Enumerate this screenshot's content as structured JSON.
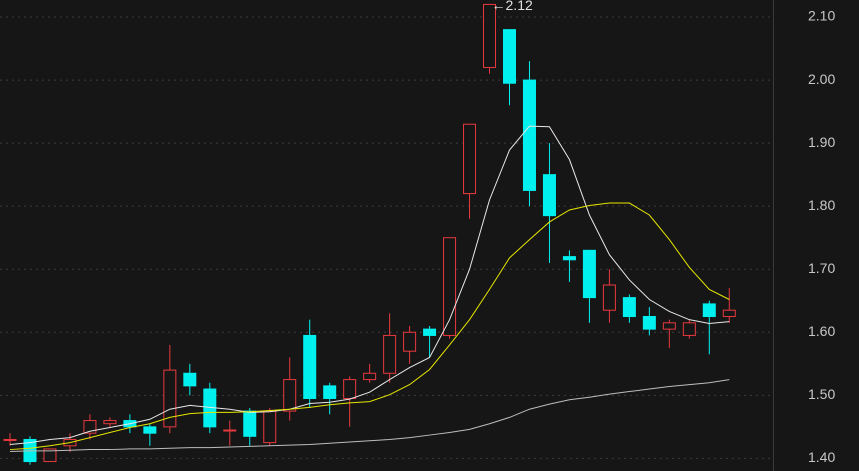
{
  "chart_data": {
    "type": "candlestick",
    "annotation": "←2.12",
    "open": [
      1.43,
      1.43,
      1.395,
      1.42,
      1.44,
      1.455,
      1.46,
      1.45,
      1.45,
      1.535,
      1.51,
      1.445,
      1.475,
      1.425,
      1.475,
      1.595,
      1.515,
      1.495,
      1.525,
      1.535,
      1.57,
      1.605,
      1.595,
      1.82,
      2.02,
      2.08,
      2.0,
      1.85,
      1.72,
      1.73,
      1.635,
      1.655,
      1.625,
      1.605,
      1.595,
      1.645,
      1.625
    ],
    "high": [
      1.44,
      1.435,
      1.415,
      1.44,
      1.47,
      1.465,
      1.47,
      1.455,
      1.58,
      1.55,
      1.52,
      1.46,
      1.48,
      1.48,
      1.56,
      1.62,
      1.52,
      1.53,
      1.55,
      1.63,
      1.61,
      1.61,
      1.75,
      1.93,
      2.12,
      2.08,
      2.03,
      1.9,
      1.73,
      1.73,
      1.7,
      1.66,
      1.64,
      1.62,
      1.62,
      1.65,
      1.67
    ],
    "low": [
      1.42,
      1.39,
      1.395,
      1.41,
      1.43,
      1.45,
      1.44,
      1.42,
      1.44,
      1.5,
      1.44,
      1.42,
      1.42,
      1.42,
      1.46,
      1.48,
      1.47,
      1.45,
      1.52,
      1.52,
      1.55,
      1.56,
      1.59,
      1.78,
      2.01,
      1.96,
      1.8,
      1.71,
      1.68,
      1.615,
      1.615,
      1.615,
      1.595,
      1.575,
      1.59,
      1.565,
      1.615
    ],
    "close": [
      1.43,
      1.395,
      1.415,
      1.43,
      1.46,
      1.46,
      1.45,
      1.44,
      1.54,
      1.515,
      1.45,
      1.445,
      1.435,
      1.475,
      1.525,
      1.495,
      1.495,
      1.525,
      1.535,
      1.595,
      1.6,
      1.595,
      1.75,
      1.93,
      2.12,
      1.995,
      1.825,
      1.785,
      1.715,
      1.655,
      1.675,
      1.625,
      1.605,
      1.615,
      1.615,
      1.625,
      1.635
    ],
    "up_color": "#e8393e",
    "down_color": "#00f0f0",
    "lines": [
      {
        "color": "#e8e8e8",
        "values": [
          1.422,
          1.425,
          1.43,
          1.433,
          1.443,
          1.449,
          1.455,
          1.462,
          1.478,
          1.484,
          1.481,
          1.478,
          1.473,
          1.474,
          1.478,
          1.487,
          1.489,
          1.494,
          1.505,
          1.525,
          1.544,
          1.56,
          1.62,
          1.7,
          1.81,
          1.889,
          1.927,
          1.926,
          1.874,
          1.786,
          1.723,
          1.683,
          1.652,
          1.633,
          1.62,
          1.614,
          1.617
        ]
      },
      {
        "color": "#e6e600",
        "values": [
          1.414,
          1.416,
          1.42,
          1.425,
          1.433,
          1.441,
          1.449,
          1.455,
          1.465,
          1.471,
          1.473,
          1.473,
          1.474,
          1.476,
          1.478,
          1.481,
          1.485,
          1.488,
          1.49,
          1.501,
          1.517,
          1.541,
          1.58,
          1.62,
          1.668,
          1.718,
          1.747,
          1.775,
          1.794,
          1.801,
          1.805,
          1.805,
          1.786,
          1.747,
          1.703,
          1.668,
          1.652
        ]
      },
      {
        "color": "#bdbdbd",
        "values": [
          1.411,
          1.412,
          1.412,
          1.413,
          1.414,
          1.414,
          1.415,
          1.415,
          1.416,
          1.417,
          1.417,
          1.418,
          1.419,
          1.42,
          1.421,
          1.422,
          1.424,
          1.426,
          1.428,
          1.43,
          1.433,
          1.437,
          1.441,
          1.446,
          1.455,
          1.465,
          1.478,
          1.486,
          1.493,
          1.497,
          1.502,
          1.506,
          1.51,
          1.514,
          1.517,
          1.52,
          1.525
        ]
      }
    ],
    "ylim": [
      1.38,
      2.127
    ],
    "yticks": [
      {
        "value": 1.4,
        "label": "1.40"
      },
      {
        "value": 1.5,
        "label": "1.50"
      },
      {
        "value": 1.6,
        "label": "1.60"
      },
      {
        "value": 1.7,
        "label": "1.70"
      },
      {
        "value": 1.8,
        "label": "1.80"
      },
      {
        "value": 1.9,
        "label": "1.90"
      },
      {
        "value": 2.0,
        "label": "2.00"
      },
      {
        "value": 2.1,
        "label": "2.10"
      }
    ],
    "grid": true
  }
}
